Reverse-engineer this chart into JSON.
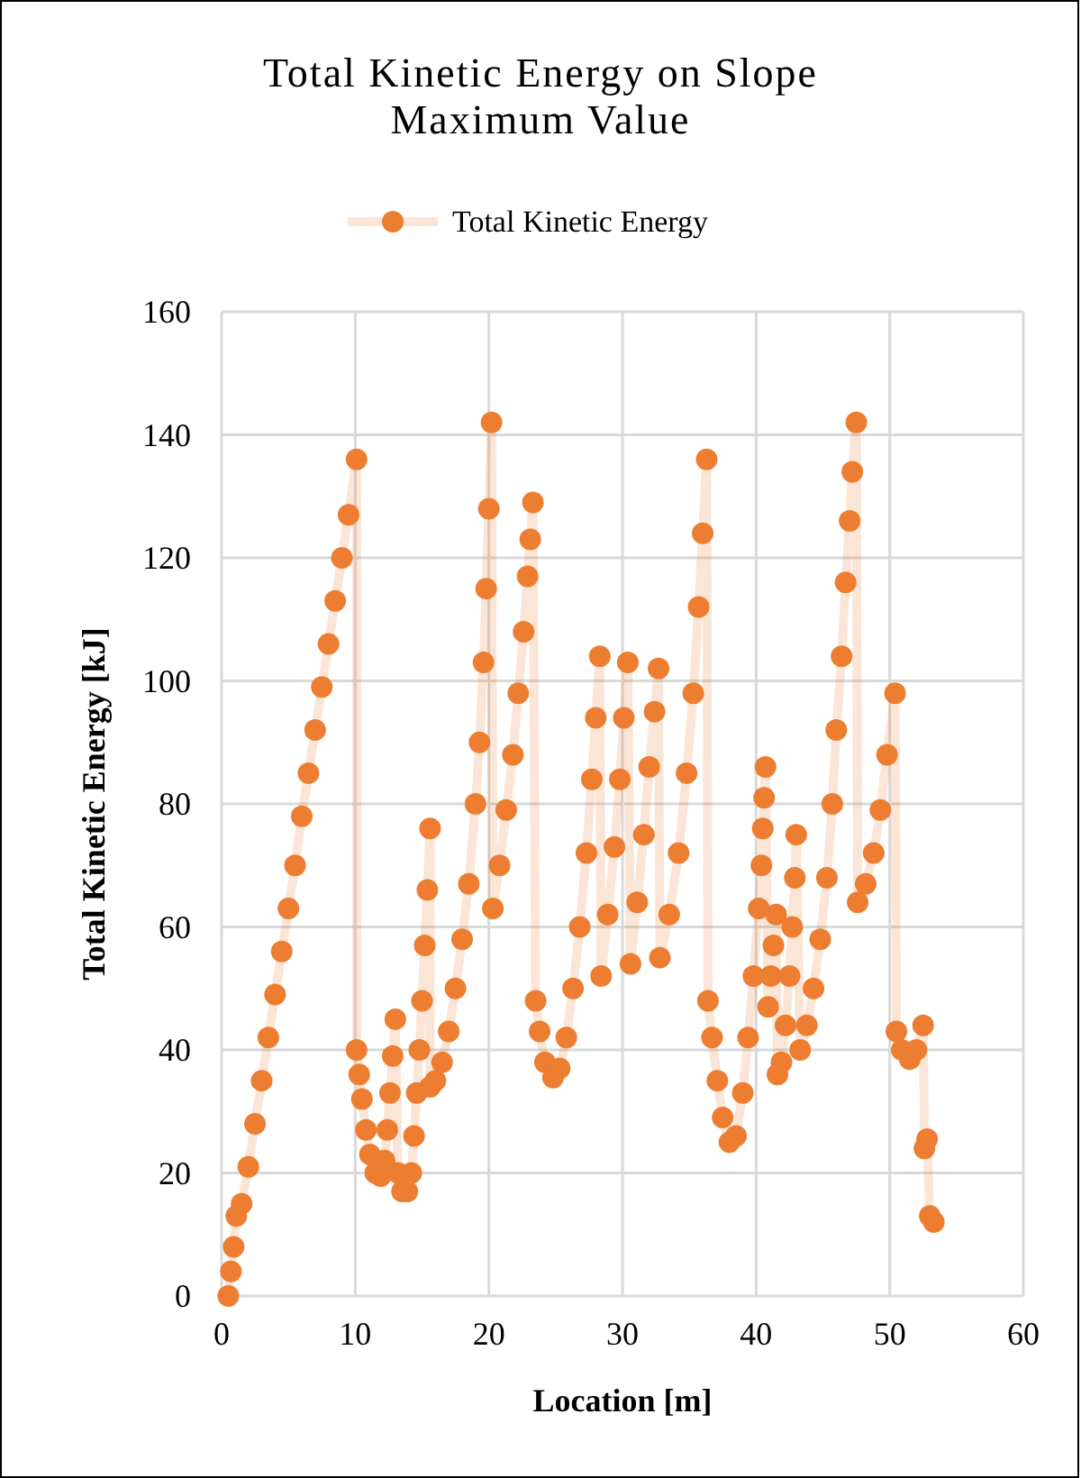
{
  "chart_data": {
    "type": "line",
    "title": "Total Kinetic Energy on Slope",
    "subtitle": "Maximum Value",
    "xlabel": "Location [m]",
    "ylabel": "Total Kinetic Energy [kJ]",
    "xlim": [
      0,
      60
    ],
    "xticks": [
      0,
      10,
      20,
      30,
      40,
      50,
      60
    ],
    "ylim": [
      0,
      160
    ],
    "yticks": [
      0,
      20,
      40,
      60,
      80,
      100,
      120,
      140,
      160
    ],
    "grid": true,
    "legend": "top",
    "marker": "circle",
    "line_style": "solid",
    "series": [
      {
        "name": "Total Kinetic Energy",
        "color": "#ed7d31",
        "x": [
          0.5,
          0.7,
          0.9,
          1.1,
          1.5,
          2,
          2.5,
          3,
          3.5,
          4,
          4.5,
          5,
          5.5,
          6,
          6.5,
          7,
          7.5,
          8,
          8.5,
          9,
          9.5,
          10.1,
          10.1,
          10.3,
          10.5,
          10.8,
          11.1,
          11.5,
          11.9,
          12.2,
          12.4,
          12.6,
          12.8,
          13,
          13.2,
          13.5,
          13.9,
          14.2,
          14.4,
          14.6,
          14.8,
          15,
          15.2,
          15.4,
          15.6,
          15.6,
          16,
          16.5,
          17,
          17.5,
          18,
          18.5,
          19,
          19.3,
          19.6,
          19.8,
          20,
          20.2,
          20.3,
          20.8,
          21.3,
          21.8,
          22.2,
          22.6,
          22.9,
          23.1,
          23.3,
          23.5,
          23.8,
          24.2,
          24.8,
          25.3,
          25.8,
          26.3,
          26.8,
          27.3,
          27.7,
          28,
          28.3,
          28.4,
          28.9,
          29.4,
          29.8,
          30.1,
          30.4,
          30.6,
          31.1,
          31.6,
          32,
          32.4,
          32.7,
          32.8,
          33.5,
          34.2,
          34.8,
          35.3,
          35.7,
          36,
          36.3,
          36.4,
          36.7,
          37.1,
          37.5,
          38,
          38.5,
          39,
          39.4,
          39.8,
          40.2,
          40.4,
          40.5,
          40.6,
          40.7,
          40.9,
          41.1,
          41.3,
          41.5,
          41.6,
          41.9,
          42.2,
          42.5,
          42.7,
          42.9,
          43,
          43.3,
          43.8,
          44.3,
          44.8,
          45.3,
          45.7,
          46,
          46.4,
          46.7,
          47,
          47.2,
          47.5,
          47.6,
          48.2,
          48.8,
          49.3,
          49.8,
          50.4,
          50.5,
          50.9,
          51.5,
          52,
          52.5,
          52.6,
          52.8,
          53,
          53.3
        ],
        "values": [
          0,
          4,
          8,
          13,
          15,
          21,
          28,
          35,
          42,
          49,
          56,
          63,
          70,
          78,
          85,
          92,
          99,
          106,
          113,
          120,
          127,
          136,
          40,
          36,
          32,
          27,
          23,
          20,
          19.5,
          22,
          27,
          33,
          39,
          45,
          20,
          17,
          17,
          20,
          26,
          33,
          40,
          48,
          57,
          66,
          76,
          34,
          35,
          38,
          43,
          50,
          58,
          67,
          80,
          90,
          103,
          115,
          128,
          142,
          63,
          70,
          79,
          88,
          98,
          108,
          117,
          123,
          129,
          48,
          43,
          38,
          35.5,
          37,
          42,
          50,
          60,
          72,
          84,
          94,
          104,
          52,
          62,
          73,
          84,
          94,
          103,
          54,
          64,
          75,
          86,
          95,
          102,
          55,
          62,
          72,
          85,
          98,
          112,
          124,
          136,
          48,
          42,
          35,
          29,
          25,
          26,
          33,
          42,
          52,
          63,
          70,
          76,
          81,
          86,
          47,
          52,
          57,
          62,
          36,
          38,
          44,
          52,
          60,
          68,
          75,
          40,
          44,
          50,
          58,
          68,
          80,
          92,
          104,
          116,
          126,
          134,
          142,
          64,
          67,
          72,
          79,
          88,
          98,
          43,
          40,
          38.5,
          40,
          44,
          24,
          25.5,
          13,
          12
        ]
      }
    ]
  }
}
